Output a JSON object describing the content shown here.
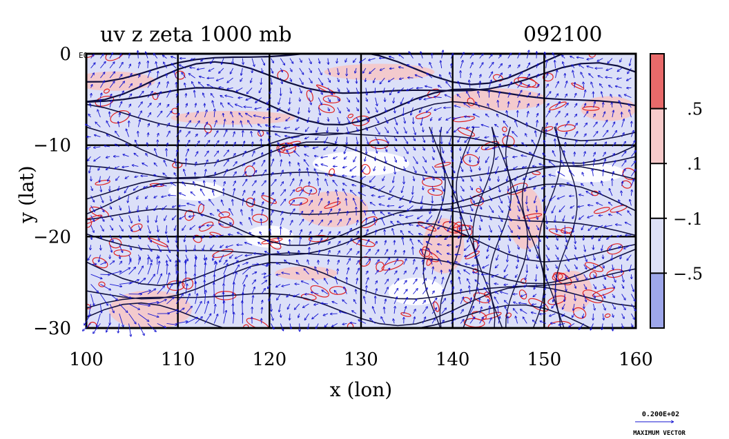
{
  "chart_data": {
    "type": "heatmap",
    "title": "uv z zeta 1000 mb",
    "date_label": "092100",
    "xlabel": "x (lon)",
    "ylabel": "y (lat)",
    "xlim": [
      100,
      160
    ],
    "ylim": [
      -30,
      0
    ],
    "x_ticks": [
      100,
      110,
      120,
      130,
      140,
      150,
      160
    ],
    "y_ticks": [
      0,
      -10,
      -20,
      -30
    ],
    "x_tick_labels": [
      "100",
      "110",
      "120",
      "130",
      "140",
      "150",
      "160"
    ],
    "y_tick_labels": [
      "0",
      "−10",
      "−20",
      "−30"
    ],
    "corner_mark": "E0",
    "grid": true,
    "grid_lons": [
      110,
      120,
      130,
      140,
      150
    ],
    "grid_lats": [
      -10,
      -20
    ],
    "colorbar": {
      "levels_labels": [
        ".5",
        ".1",
        "−.1",
        "−.5"
      ],
      "colors": [
        "#e86a6a",
        "#f7caca",
        "#ffffff",
        "#dde0f7",
        "#9ea7ea"
      ]
    },
    "vector_legend": {
      "value_text": "0.200E+02",
      "label": "MAXIMUM VECTOR"
    },
    "colors": {
      "positive_contour": "#e02020",
      "negative_fill": "#dce0f8",
      "positive_fill": "#f5c8c8",
      "vectors": "#1010d0",
      "height_contour": "#101040"
    }
  }
}
